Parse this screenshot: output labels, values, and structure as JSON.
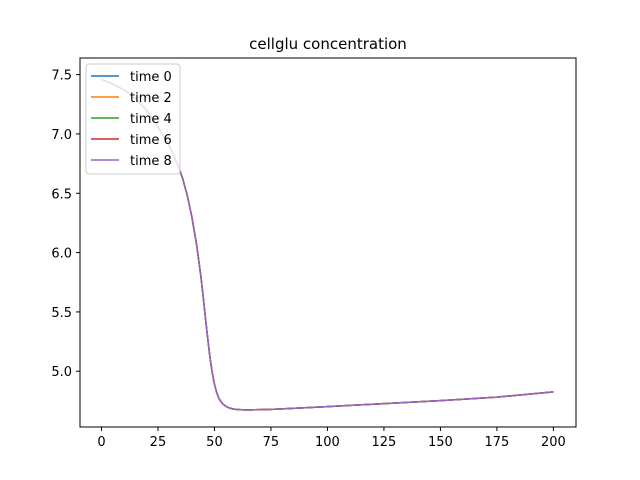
{
  "chart_data": {
    "type": "line",
    "title": "cellglu concentration",
    "xlabel": "",
    "ylabel": "",
    "xlim": [
      -9.5,
      210
    ],
    "ylim": [
      4.53,
      7.64
    ],
    "x_ticks": [
      0,
      25,
      50,
      75,
      100,
      125,
      150,
      175,
      200
    ],
    "y_ticks": [
      5.0,
      5.5,
      6.0,
      6.5,
      7.0,
      7.5
    ],
    "y_tick_labels": [
      "5.0",
      "5.5",
      "6.0",
      "6.5",
      "7.0",
      "7.5"
    ],
    "grid": false,
    "legend_position": "top-left",
    "x": [
      0,
      5,
      10,
      15,
      20,
      25,
      30,
      34,
      36,
      38,
      40,
      42,
      44,
      45,
      46,
      47,
      48,
      49,
      50,
      51,
      52,
      53,
      54,
      55,
      56,
      57,
      58,
      59,
      60,
      62,
      64,
      66,
      68,
      70,
      75,
      80,
      90,
      100,
      110,
      125,
      150,
      175,
      200
    ],
    "series": [
      {
        "name": "time 0",
        "color": "#1f77b4",
        "values": [
          7.46,
          7.42,
          7.37,
          7.3,
          7.2,
          7.06,
          6.9,
          6.73,
          6.62,
          6.48,
          6.3,
          6.08,
          5.8,
          5.63,
          5.45,
          5.28,
          5.12,
          4.99,
          4.89,
          4.82,
          4.77,
          4.74,
          4.72,
          4.705,
          4.695,
          4.688,
          4.683,
          4.68,
          4.677,
          4.675,
          4.674,
          4.674,
          4.675,
          4.676,
          4.679,
          4.683,
          4.692,
          4.702,
          4.712,
          4.727,
          4.752,
          4.782,
          4.826
        ]
      },
      {
        "name": "time 2",
        "color": "#ff7f0e",
        "values": [
          7.46,
          7.42,
          7.37,
          7.3,
          7.2,
          7.06,
          6.9,
          6.73,
          6.62,
          6.48,
          6.3,
          6.08,
          5.8,
          5.63,
          5.45,
          5.28,
          5.12,
          4.99,
          4.89,
          4.82,
          4.77,
          4.74,
          4.72,
          4.705,
          4.695,
          4.688,
          4.683,
          4.68,
          4.677,
          4.675,
          4.674,
          4.674,
          4.675,
          4.676,
          4.679,
          4.683,
          4.692,
          4.702,
          4.712,
          4.727,
          4.752,
          4.782,
          4.826
        ]
      },
      {
        "name": "time 4",
        "color": "#2ca02c",
        "values": [
          7.46,
          7.42,
          7.37,
          7.3,
          7.2,
          7.06,
          6.9,
          6.73,
          6.62,
          6.48,
          6.3,
          6.08,
          5.8,
          5.63,
          5.45,
          5.28,
          5.12,
          4.99,
          4.89,
          4.82,
          4.77,
          4.74,
          4.72,
          4.705,
          4.695,
          4.688,
          4.683,
          4.68,
          4.677,
          4.675,
          4.674,
          4.674,
          4.675,
          4.676,
          4.679,
          4.683,
          4.692,
          4.702,
          4.712,
          4.727,
          4.752,
          4.782,
          4.826
        ]
      },
      {
        "name": "time 6",
        "color": "#d62728",
        "values": [
          7.46,
          7.42,
          7.37,
          7.3,
          7.2,
          7.06,
          6.9,
          6.73,
          6.62,
          6.48,
          6.3,
          6.08,
          5.8,
          5.63,
          5.45,
          5.28,
          5.12,
          4.99,
          4.89,
          4.82,
          4.77,
          4.74,
          4.72,
          4.705,
          4.695,
          4.688,
          4.683,
          4.68,
          4.677,
          4.675,
          4.674,
          4.674,
          4.675,
          4.676,
          4.679,
          4.683,
          4.692,
          4.702,
          4.712,
          4.727,
          4.752,
          4.782,
          4.826
        ]
      },
      {
        "name": "time 8",
        "color": "#9467bd",
        "values": [
          7.46,
          7.42,
          7.37,
          7.3,
          7.2,
          7.06,
          6.9,
          6.73,
          6.62,
          6.48,
          6.3,
          6.08,
          5.8,
          5.63,
          5.45,
          5.28,
          5.12,
          4.99,
          4.89,
          4.82,
          4.77,
          4.74,
          4.72,
          4.705,
          4.695,
          4.688,
          4.683,
          4.68,
          4.677,
          4.675,
          4.674,
          4.674,
          4.675,
          4.676,
          4.679,
          4.683,
          4.692,
          4.702,
          4.712,
          4.727,
          4.752,
          4.782,
          4.826
        ]
      }
    ]
  }
}
